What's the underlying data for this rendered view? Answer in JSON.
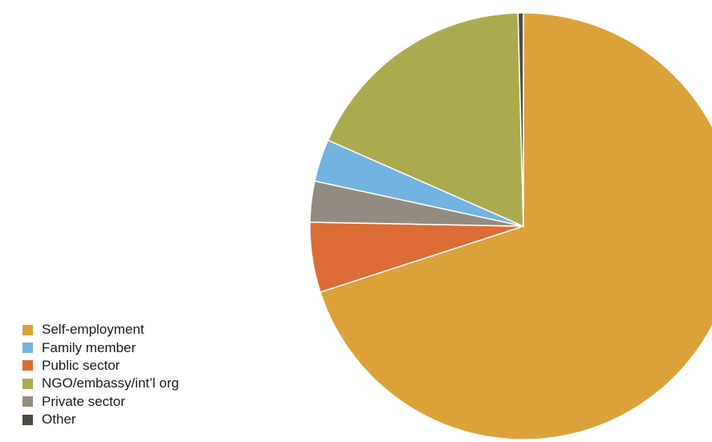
{
  "chart_data": {
    "type": "pie",
    "title": "",
    "start_angle_deg": 0,
    "direction": "clockwise",
    "slices": [
      {
        "label": "Self-employment",
        "value": 70.0,
        "color": "#DBA23A"
      },
      {
        "label": "Public sector",
        "value": 5.3,
        "color": "#DD6C36"
      },
      {
        "label": "Private sector",
        "value": 3.1,
        "color": "#948B80"
      },
      {
        "label": "Family member",
        "value": 3.2,
        "color": "#73B3E0"
      },
      {
        "label": "NGO/embassy/int’l org",
        "value": 18.0,
        "color": "#ABAA4F"
      },
      {
        "label": "Other",
        "value": 0.4,
        "color": "#4B4B45"
      }
    ],
    "legend": {
      "placement": "bottom-left",
      "entries": [
        {
          "label": "Self-employment",
          "color": "#DBA23A"
        },
        {
          "label": "Family member",
          "color": "#73B3E0"
        },
        {
          "label": "Public sector",
          "color": "#DD6C36"
        },
        {
          "label": "NGO/embassy/int’l org",
          "color": "#ABAA4F"
        },
        {
          "label": "Private sector",
          "color": "#948B80"
        },
        {
          "label": "Other",
          "color": "#4B4B45"
        }
      ]
    }
  }
}
